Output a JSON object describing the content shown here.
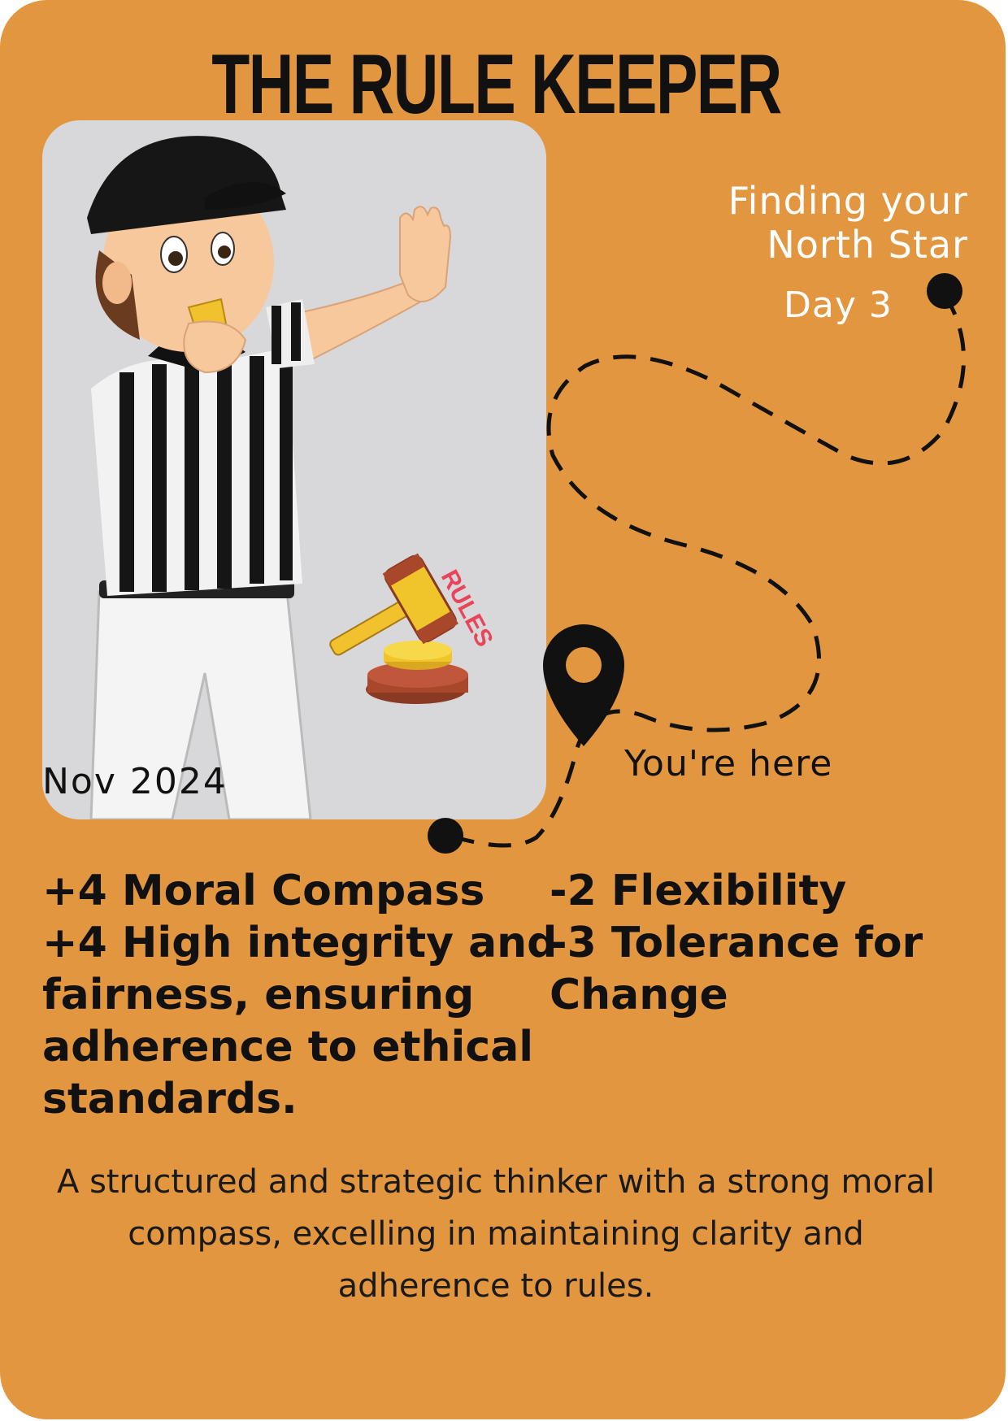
{
  "card": {
    "title": "THE RULE KEEPER",
    "date": "Nov 2024",
    "subtitle_line1": "Finding your",
    "subtitle_line2": "North Star",
    "day": "Day 3",
    "marker_label": "You're here",
    "gavel_label": "RULES",
    "positives": [
      "+4 Moral Compass",
      "+4 High integrity and fairness, ensuring adherence to ethical standards."
    ],
    "negatives": [
      "-2 Flexibility",
      "-3 Tolerance for Change"
    ],
    "description": "A structured and strategic thinker with a strong moral compass, excelling in maintaining clarity and adherence to rules."
  },
  "colors": {
    "card_background": "#E39640",
    "photo_background": "#D8D8DA",
    "title_text": "#111111",
    "subtitle_text": "#FFFFFF",
    "path": "#111111"
  },
  "icons": {
    "referee": "referee-illustration",
    "gavel": "gavel-icon",
    "location": "location-pin-icon",
    "path_start": "path-dot-icon",
    "path_end": "path-dot-icon"
  }
}
